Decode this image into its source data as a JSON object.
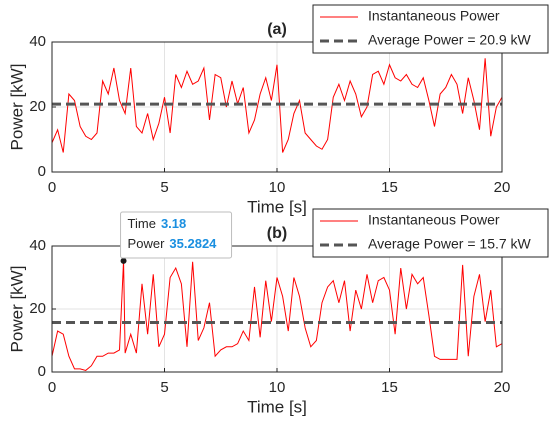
{
  "chart_data": [
    {
      "type": "line",
      "title": "(a)",
      "xlabel": "Time [s]",
      "ylabel": "Power [kW]",
      "xlim": [
        0,
        20
      ],
      "xticks": [
        0,
        5,
        10,
        15,
        20
      ],
      "ylim": [
        0,
        40
      ],
      "yticks": [
        0,
        20,
        40
      ],
      "grid": true,
      "legend": "northeast",
      "series": [
        {
          "name": "Instantaneous Power",
          "color": "#ff0000",
          "line_style": "solid",
          "x": [
            0,
            0.25,
            0.5,
            0.75,
            1,
            1.25,
            1.5,
            1.75,
            2,
            2.25,
            2.5,
            2.75,
            3,
            3.25,
            3.5,
            3.75,
            4,
            4.25,
            4.5,
            4.75,
            5,
            5.25,
            5.5,
            5.75,
            6,
            6.25,
            6.5,
            6.75,
            7,
            7.25,
            7.5,
            7.75,
            8,
            8.25,
            8.5,
            8.75,
            9,
            9.25,
            9.5,
            9.75,
            10,
            10.25,
            10.5,
            10.75,
            11,
            11.25,
            11.5,
            11.75,
            12,
            12.25,
            12.5,
            12.75,
            13,
            13.25,
            13.5,
            13.75,
            14,
            14.25,
            14.5,
            14.75,
            15,
            15.25,
            15.5,
            15.75,
            16,
            16.25,
            16.5,
            16.75,
            17,
            17.25,
            17.5,
            17.75,
            18,
            18.25,
            18.5,
            18.75,
            19,
            19.25,
            19.5,
            19.75,
            20
          ],
          "values": [
            9,
            13,
            6,
            24,
            22,
            14,
            11,
            10,
            12,
            28,
            24,
            32,
            22,
            18,
            32,
            14,
            12,
            18,
            10,
            15,
            23,
            12,
            30,
            26,
            31,
            27,
            28,
            32,
            16,
            30,
            29,
            20,
            28,
            21,
            26,
            12,
            16,
            24,
            29,
            22,
            33,
            6,
            10,
            18,
            22,
            12,
            10,
            8,
            7,
            10,
            23,
            27,
            22,
            28,
            24,
            17,
            20,
            30,
            31,
            27,
            33,
            29,
            28,
            30,
            27,
            26,
            29,
            22,
            14,
            24,
            26,
            30,
            27,
            18,
            29,
            22,
            13,
            35,
            11,
            20,
            23
          ]
        },
        {
          "name": "Average Power = 20.9 kW",
          "color": "#555555",
          "line_style": "dashed",
          "x": [
            0,
            20
          ],
          "values": [
            20.9,
            20.9
          ]
        }
      ]
    },
    {
      "type": "line",
      "title": "(b)",
      "xlabel": "Time [s]",
      "ylabel": "Power [kW]",
      "xlim": [
        0,
        20
      ],
      "xticks": [
        0,
        5,
        10,
        15,
        20
      ],
      "ylim": [
        0,
        40
      ],
      "yticks": [
        0,
        20,
        40
      ],
      "grid": true,
      "legend": "northeast",
      "series": [
        {
          "name": "Instantaneous Power",
          "color": "#ff0000",
          "line_style": "solid",
          "x": [
            0,
            0.25,
            0.5,
            0.75,
            1,
            1.25,
            1.5,
            1.75,
            2,
            2.25,
            2.5,
            2.75,
            3,
            3.18,
            3.25,
            3.5,
            3.75,
            4,
            4.25,
            4.5,
            4.75,
            5,
            5.25,
            5.5,
            5.75,
            6,
            6.25,
            6.5,
            6.75,
            7,
            7.25,
            7.5,
            7.75,
            8,
            8.25,
            8.5,
            8.75,
            9,
            9.25,
            9.5,
            9.75,
            10,
            10.25,
            10.5,
            10.75,
            11,
            11.25,
            11.5,
            11.75,
            12,
            12.25,
            12.5,
            12.75,
            13,
            13.25,
            13.5,
            13.75,
            14,
            14.25,
            14.5,
            14.75,
            15,
            15.25,
            15.5,
            15.75,
            16,
            16.25,
            16.5,
            16.75,
            17,
            17.25,
            17.5,
            17.75,
            18,
            18.25,
            18.5,
            18.75,
            19,
            19.25,
            19.5,
            19.75,
            20
          ],
          "values": [
            5,
            13,
            12,
            5,
            1,
            1,
            0.5,
            2,
            5,
            5,
            6,
            6,
            7,
            35.2824,
            6,
            12,
            6,
            28,
            12,
            31,
            8,
            12,
            30,
            33,
            28,
            8,
            35,
            10,
            14,
            22,
            5,
            7,
            8,
            8,
            9,
            13,
            10,
            27,
            11,
            29,
            16,
            30,
            24,
            13,
            30,
            24,
            14,
            8,
            10,
            22,
            27,
            29,
            22,
            29,
            13,
            26,
            20,
            31,
            22,
            29,
            30,
            26,
            12,
            33,
            20,
            31,
            28,
            30,
            18,
            5,
            4,
            4,
            4,
            4,
            34,
            5,
            24,
            31,
            16,
            26,
            8,
            9
          ]
        },
        {
          "name": "Average Power = 15.7 kW",
          "color": "#555555",
          "line_style": "dashed",
          "x": [
            0,
            20
          ],
          "values": [
            15.7,
            15.7
          ]
        }
      ],
      "datatip": {
        "x_label": "Time",
        "x": 3.18,
        "y_label": "Power",
        "y": 35.2824
      }
    }
  ]
}
